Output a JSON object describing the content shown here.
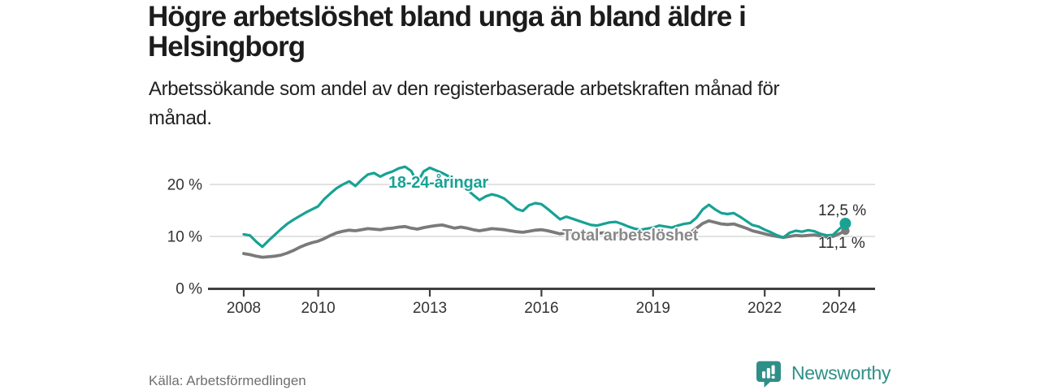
{
  "header": {
    "title": "Högre arbetslöshet bland unga än bland äldre i\nHelsingborg",
    "subtitle": "Arbetssökande som andel av den registerbaserade arbetskraften månad för\nmånad."
  },
  "chart_data": {
    "type": "line",
    "title": "Högre arbetslöshet bland unga än bland äldre i Helsingborg",
    "subtitle": "Arbetssökande som andel av den registerbaserade arbetskraften månad för månad.",
    "x_start_year": 2008,
    "x_step_months": 2,
    "x_end_label_year": 2024,
    "ylim": [
      0,
      25
    ],
    "y_unit": "%",
    "grid_on": true,
    "y_gridlines": [
      10,
      20
    ],
    "grid_color": "#d9d9d9",
    "axis_color": "#3f3f3f",
    "tick_label_color": "#333333",
    "y_ticks": [
      {
        "value": 0,
        "label": "0 %"
      },
      {
        "value": 10,
        "label": "10 %"
      },
      {
        "value": 20,
        "label": "20 %"
      }
    ],
    "x_ticks": [
      {
        "value": 2008,
        "label": "2008"
      },
      {
        "value": 2010,
        "label": "2010"
      },
      {
        "value": 2013,
        "label": "2013"
      },
      {
        "value": 2016,
        "label": "2016"
      },
      {
        "value": 2019,
        "label": "2019"
      },
      {
        "value": 2022,
        "label": "2022"
      },
      {
        "value": 2024,
        "label": "2024"
      }
    ],
    "series": [
      {
        "name": "18-24-åringar",
        "color": "#17a294",
        "end_label": "12,5 %",
        "end_value": 12.5,
        "values": [
          10.4,
          10.2,
          9.0,
          8.0,
          9.2,
          10.3,
          11.4,
          12.4,
          13.2,
          13.9,
          14.6,
          15.2,
          15.8,
          17.2,
          18.3,
          19.3,
          20.0,
          20.6,
          19.7,
          20.9,
          21.9,
          22.2,
          21.5,
          22.1,
          22.5,
          23.1,
          23.4,
          22.6,
          20.4,
          22.5,
          23.2,
          22.7,
          22.2,
          21.6,
          20.8,
          20.0,
          19.0,
          18.0,
          17.0,
          17.7,
          18.1,
          17.8,
          17.3,
          16.3,
          15.3,
          14.9,
          16.0,
          16.4,
          16.2,
          15.3,
          14.3,
          13.3,
          13.8,
          13.4,
          13.0,
          12.6,
          12.2,
          12.1,
          12.4,
          12.7,
          12.8,
          12.4,
          11.9,
          11.5,
          11.3,
          11.5,
          11.7,
          12.1,
          11.9,
          11.7,
          12.1,
          12.4,
          12.6,
          13.6,
          15.2,
          16.1,
          15.2,
          14.5,
          14.3,
          14.5,
          13.8,
          13.0,
          12.2,
          11.9,
          11.3,
          10.8,
          10.2,
          9.8,
          10.7,
          11.1,
          10.9,
          11.2,
          11.0,
          10.5,
          10.2,
          10.3,
          11.4,
          12.5
        ]
      },
      {
        "name": "Total arbetslöshet",
        "color": "#7a7a7a",
        "end_label": "11,1 %",
        "end_value": 11.1,
        "values": [
          6.7,
          6.5,
          6.2,
          6.0,
          6.1,
          6.2,
          6.4,
          6.8,
          7.3,
          7.9,
          8.4,
          8.8,
          9.1,
          9.6,
          10.2,
          10.7,
          11.0,
          11.2,
          11.1,
          11.3,
          11.5,
          11.4,
          11.3,
          11.5,
          11.6,
          11.8,
          11.9,
          11.6,
          11.4,
          11.7,
          11.9,
          12.1,
          12.2,
          11.9,
          11.6,
          11.8,
          11.6,
          11.3,
          11.1,
          11.3,
          11.5,
          11.4,
          11.3,
          11.1,
          10.9,
          10.8,
          11.0,
          11.2,
          11.3,
          11.1,
          10.8,
          10.5,
          10.7,
          10.6,
          10.5,
          10.3,
          10.4,
          10.6,
          10.7,
          10.5,
          10.4,
          10.2,
          10.0,
          9.9,
          10.0,
          10.1,
          10.2,
          10.3,
          10.2,
          10.1,
          10.3,
          10.5,
          10.7,
          11.6,
          12.5,
          13.0,
          12.7,
          12.4,
          12.3,
          12.4,
          12.0,
          11.6,
          11.1,
          10.8,
          10.5,
          10.2,
          10.0,
          9.8,
          10.0,
          10.2,
          10.1,
          10.2,
          10.3,
          10.1,
          9.9,
          10.0,
          10.5,
          11.1
        ]
      }
    ],
    "legend_position": "inline-labels"
  },
  "footer": {
    "source": "Källa: Arbetsförmedlingen",
    "brand": "Newsworthy",
    "brand_color": "#2f8f88"
  }
}
